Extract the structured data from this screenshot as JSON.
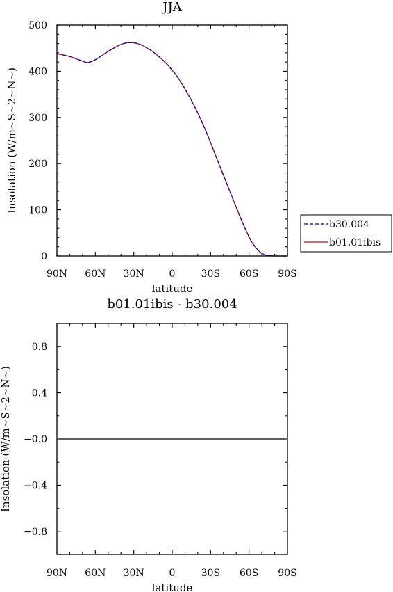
{
  "chart_data": [
    {
      "type": "line",
      "title": "JJA",
      "xlabel": "latitude",
      "ylabel": "Insolation (W/m~S~2~N~)",
      "xlim": [
        -90,
        90
      ],
      "ylim": [
        0,
        500
      ],
      "xticks": [
        -90,
        -60,
        -30,
        0,
        30,
        60,
        90
      ],
      "xtick_labels": [
        "90N",
        "60N",
        "30N",
        "0",
        "30S",
        "60S",
        "90S"
      ],
      "yticks": [
        0,
        100,
        200,
        300,
        400,
        500
      ],
      "ytick_labels": [
        "0",
        "100",
        "200",
        "300",
        "400",
        "500"
      ],
      "grid": false,
      "legend_position": "right",
      "x": [
        -90,
        -80,
        -75,
        -70,
        -66,
        -60,
        -50,
        -40,
        -33,
        -25,
        -15,
        -5,
        0,
        5,
        15,
        25,
        35,
        45,
        55,
        62,
        68,
        72,
        76,
        80,
        85,
        90
      ],
      "series": [
        {
          "name": "b30.004",
          "color": "#0000cc",
          "dash": "dashed",
          "values": [
            438,
            432,
            427,
            422,
            419,
            425,
            443,
            458,
            462,
            458,
            442,
            418,
            402,
            384,
            337,
            279,
            210,
            140,
            72,
            31,
            10,
            3,
            0.5,
            0,
            0,
            0
          ]
        },
        {
          "name": "b01.01ibis",
          "color": "#dd0000",
          "dash": "solid",
          "values": [
            438,
            432,
            427,
            422,
            419,
            425,
            443,
            458,
            462,
            458,
            442,
            418,
            402,
            384,
            337,
            279,
            210,
            140,
            72,
            31,
            10,
            3,
            0.5,
            0,
            0,
            0
          ]
        }
      ]
    },
    {
      "type": "line",
      "title": "b01.01ibis - b30.004",
      "xlabel": "latitude",
      "ylabel": "Insolation (W/m~S~2~N~)",
      "xlim": [
        -90,
        90
      ],
      "ylim": [
        -1,
        1
      ],
      "xticks": [
        -90,
        -60,
        -30,
        0,
        30,
        60,
        90
      ],
      "xtick_labels": [
        "90N",
        "60N",
        "30N",
        "0",
        "30S",
        "60S",
        "90S"
      ],
      "yticks": [
        -0.8,
        -0.4,
        0,
        0.4,
        0.8
      ],
      "ytick_labels": [
        "−0.8",
        "−0.4",
        "−0.0",
        "0.4",
        "0.8"
      ],
      "grid": false,
      "x": [
        -88,
        88
      ],
      "series": [
        {
          "color": "#000000",
          "dash": "solid",
          "values": [
            0,
            0
          ]
        }
      ]
    }
  ]
}
